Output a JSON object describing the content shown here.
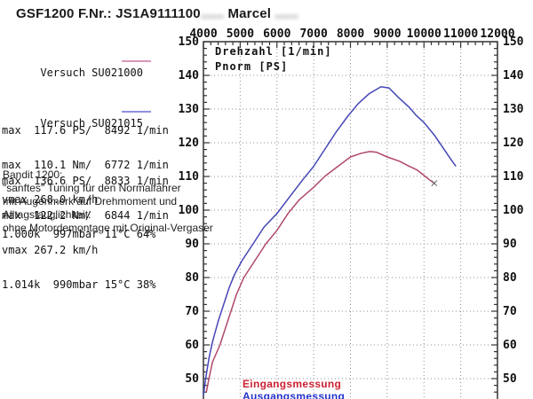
{
  "header": {
    "model": "GSF1200",
    "fnr_label": " F.Nr.: ",
    "fnr_visible": "JS1A9111100",
    "fnr_redacted": "......",
    "owner_first": " Marcel ",
    "owner_redacted": "......"
  },
  "runs": [
    {
      "name": "Versuch SU021000",
      "swatch_color": "#d898b8",
      "lines": [
        "max  117.6 PS/  8492 1/min",
        "max  110.1 Nm/  6772 1/min",
        "vmax 268.0 km/h",
        "1.000k  997mbar 11°C 64%"
      ]
    },
    {
      "name": "Versuch SU021015",
      "swatch_color": "#9090e0",
      "lines": [
        "max  136.6 PS/  8833 1/min",
        "max  122.2 Nm/  6844 1/min",
        "vmax 267.2 km/h",
        "1.014k  990mbar 15°C 38%"
      ]
    }
  ],
  "note": {
    "lines": [
      "Bandit 1200:",
      "\"sanftes\" Tuning für den Normalfahrer",
      "mit Augenmerk auf Drehmoment und",
      "Alltagstauglichkeit.",
      "ohne Motordemontage mit Original-Vergaser"
    ]
  },
  "chart_data": {
    "type": "line",
    "title": "",
    "xlabel": "Drehzahl [1/min]",
    "ylabel": "Pnorm [PS]",
    "xlim": [
      4000,
      12000
    ],
    "ylim": [
      50,
      150
    ],
    "x_major_step": 1000,
    "x_minor_step": 200,
    "y_major_step": 10,
    "y_minor_step": 2,
    "grid": "dotted",
    "x_tick_labels": [
      "4000",
      "5000",
      "6000",
      "7000",
      "8000",
      "9000",
      "10000",
      "11000",
      "12000"
    ],
    "y_tick_labels": [
      "150",
      "140",
      "130",
      "120",
      "110",
      "100",
      "90",
      "80",
      "70",
      "60",
      "50"
    ],
    "legend_position": "bottom-left-inside",
    "legend": [
      {
        "label": "Eingangsmessung",
        "color": "#cc2233"
      },
      {
        "label": "Ausgangsmessung",
        "color": "#2233cc"
      }
    ],
    "series": [
      {
        "name": "Eingangsmessung",
        "run": "SU021000",
        "color": "#b04868",
        "end_marker": "x",
        "points": [
          [
            4080,
            46
          ],
          [
            4150,
            50
          ],
          [
            4250,
            55
          ],
          [
            4350,
            57.5
          ],
          [
            4450,
            60
          ],
          [
            4600,
            65
          ],
          [
            4750,
            70
          ],
          [
            4900,
            75
          ],
          [
            5100,
            80
          ],
          [
            5400,
            85
          ],
          [
            5700,
            90
          ],
          [
            6000,
            94
          ],
          [
            6300,
            99
          ],
          [
            6600,
            103
          ],
          [
            7000,
            106.8
          ],
          [
            7300,
            110
          ],
          [
            7600,
            112.5
          ],
          [
            8000,
            115.8
          ],
          [
            8300,
            116.9
          ],
          [
            8530,
            117.4
          ],
          [
            8700,
            117.2
          ],
          [
            9000,
            115.8
          ],
          [
            9340,
            114.5
          ],
          [
            9600,
            113
          ],
          [
            9800,
            112
          ],
          [
            10000,
            110.3
          ],
          [
            10150,
            109
          ],
          [
            10280,
            108
          ]
        ]
      },
      {
        "name": "Ausgangsmessung",
        "run": "SU021015",
        "color": "#4545b8",
        "points": [
          [
            4000,
            45
          ],
          [
            4060,
            50
          ],
          [
            4150,
            56
          ],
          [
            4250,
            61
          ],
          [
            4400,
            67
          ],
          [
            4550,
            72
          ],
          [
            4700,
            77
          ],
          [
            4850,
            81
          ],
          [
            5050,
            85
          ],
          [
            5350,
            90
          ],
          [
            5650,
            95
          ],
          [
            6000,
            99
          ],
          [
            6350,
            104
          ],
          [
            6700,
            109
          ],
          [
            7000,
            113
          ],
          [
            7300,
            118
          ],
          [
            7600,
            123
          ],
          [
            7900,
            127.5
          ],
          [
            8200,
            131.5
          ],
          [
            8500,
            134.5
          ],
          [
            8830,
            136.6
          ],
          [
            9050,
            136.3
          ],
          [
            9300,
            133.5
          ],
          [
            9600,
            130.5
          ],
          [
            9800,
            128
          ],
          [
            10000,
            126
          ],
          [
            10300,
            122
          ],
          [
            10550,
            118
          ],
          [
            10750,
            114.8
          ],
          [
            10870,
            113
          ]
        ]
      }
    ]
  }
}
